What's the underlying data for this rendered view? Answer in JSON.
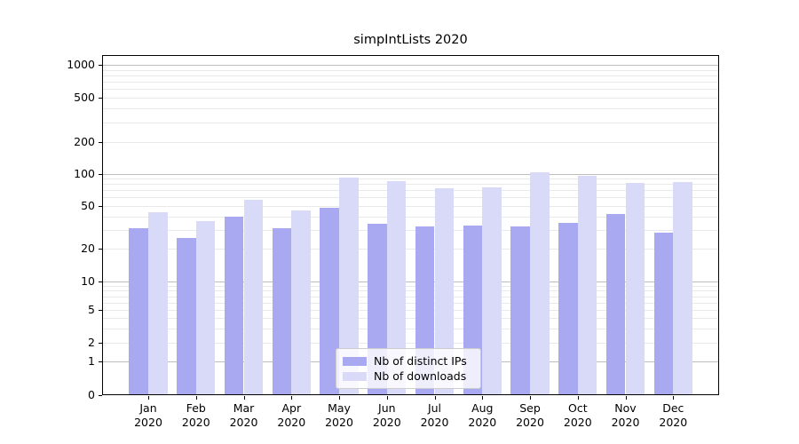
{
  "title": "simpIntLists 2020",
  "chart_data": {
    "type": "bar",
    "title": "simpIntLists 2020",
    "categories": [
      "Jan",
      "Feb",
      "Mar",
      "Apr",
      "May",
      "Jun",
      "Jul",
      "Aug",
      "Sep",
      "Oct",
      "Nov",
      "Dec"
    ],
    "x_year": "2020",
    "series": [
      {
        "name": "Nb of distinct IPs",
        "color": "#a9a9f1",
        "values": [
          31,
          25,
          40,
          31,
          48,
          34,
          32,
          33,
          32,
          35,
          42,
          28
        ]
      },
      {
        "name": "Nb of downloads",
        "color": "#d9d9f8",
        "values": [
          44,
          36,
          57,
          45,
          93,
          86,
          73,
          75,
          103,
          96,
          82,
          83
        ]
      }
    ],
    "yscale": "symlog",
    "yticks": [
      0,
      1,
      2,
      5,
      10,
      20,
      50,
      100,
      200,
      500,
      1000
    ],
    "ytick_labels": [
      "0",
      "1",
      "2",
      "5",
      "10",
      "20",
      "50",
      "100",
      "200",
      "500",
      "1000"
    ],
    "ylim": [
      0,
      1200
    ],
    "grid": "major-and-minor",
    "legend_position": "lower center",
    "colors": {
      "major_grid": "#bdbdbd",
      "minor_grid": "#e9e9e9",
      "spine": "#000000",
      "background": "#ffffff"
    }
  }
}
